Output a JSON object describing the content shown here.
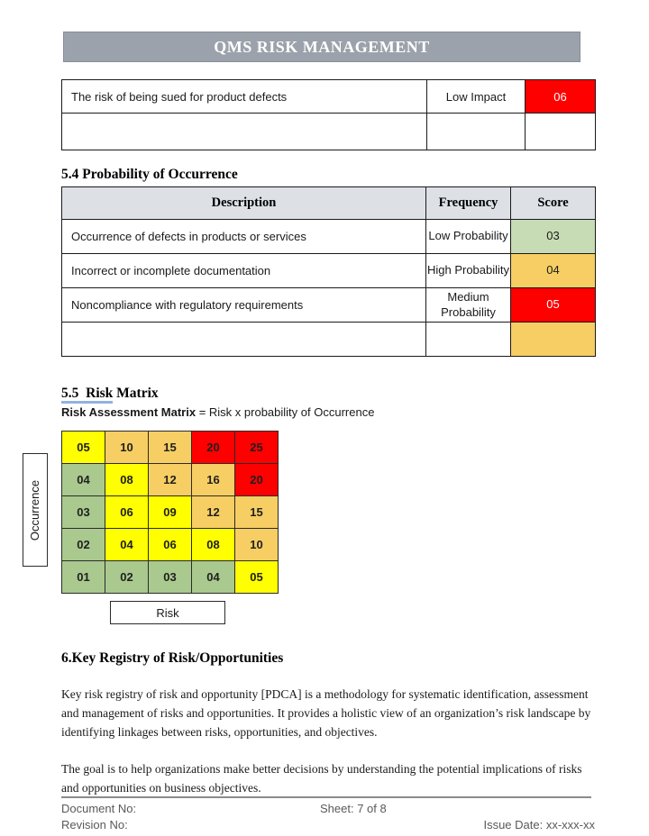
{
  "header": {
    "title": "QMS RISK MANAGEMENT"
  },
  "impact_table": {
    "rows": [
      {
        "description": "The risk of being sued for product defects",
        "level": "Low Impact",
        "score": "06",
        "score_bg": "#FF0000",
        "score_fg": "#FFFFFF"
      },
      {
        "description": "",
        "level": "",
        "score": "",
        "score_bg": "#FFFFFF",
        "score_fg": "#1a1a1a"
      }
    ]
  },
  "probability_section": {
    "heading": "5.4 Probability of Occurrence",
    "table": {
      "headers": [
        "Description",
        "Frequency",
        "Score"
      ],
      "rows": [
        {
          "description": "Occurrence of defects in products or services",
          "frequency": "Low Probability",
          "score": "03",
          "score_bg": "#C7DBB5",
          "score_fg": "#1a1a1a"
        },
        {
          "description": "Incorrect or incomplete documentation",
          "frequency": "High Probability",
          "score": "04",
          "score_bg": "#F7CE63",
          "score_fg": "#1a1a1a"
        },
        {
          "description": "Noncompliance with regulatory requirements",
          "frequency": "Medium Probability",
          "score": "05",
          "score_bg": "#FF0000",
          "score_fg": "#FFFFFF"
        },
        {
          "description": "",
          "frequency": "",
          "score": "",
          "score_bg": "#F7CE63",
          "score_fg": "#1a1a1a"
        }
      ]
    }
  },
  "risk_matrix_section": {
    "heading_underlined": "5.5  Risk",
    "heading_rest": " Matrix",
    "subtitle_bold": "Risk Assessment Matrix",
    "subtitle_rest": " = Risk x probability of Occurrence",
    "y_axis_label": "Occurrence",
    "x_axis_label": "Risk",
    "colors": {
      "green": "#A9C98E",
      "yellow": "#FFFF00",
      "orange": "#F7CE63",
      "red": "#FF0000"
    },
    "cells": [
      [
        {
          "v": "05",
          "c": "yellow"
        },
        {
          "v": "10",
          "c": "orange"
        },
        {
          "v": "15",
          "c": "orange"
        },
        {
          "v": "20",
          "c": "red"
        },
        {
          "v": "25",
          "c": "red"
        }
      ],
      [
        {
          "v": "04",
          "c": "green"
        },
        {
          "v": "08",
          "c": "yellow"
        },
        {
          "v": "12",
          "c": "orange"
        },
        {
          "v": "16",
          "c": "orange"
        },
        {
          "v": "20",
          "c": "red"
        }
      ],
      [
        {
          "v": "03",
          "c": "green"
        },
        {
          "v": "06",
          "c": "yellow"
        },
        {
          "v": "09",
          "c": "yellow"
        },
        {
          "v": "12",
          "c": "orange"
        },
        {
          "v": "15",
          "c": "orange"
        }
      ],
      [
        {
          "v": "02",
          "c": "green"
        },
        {
          "v": "04",
          "c": "yellow"
        },
        {
          "v": "06",
          "c": "yellow"
        },
        {
          "v": "08",
          "c": "yellow"
        },
        {
          "v": "10",
          "c": "orange"
        }
      ],
      [
        {
          "v": "01",
          "c": "green"
        },
        {
          "v": "02",
          "c": "green"
        },
        {
          "v": "03",
          "c": "green"
        },
        {
          "v": "04",
          "c": "green"
        },
        {
          "v": "05",
          "c": "yellow"
        }
      ]
    ]
  },
  "registry_section": {
    "heading": "6.Key Registry of Risk/Opportunities",
    "paragraphs": [
      "Key risk registry of risk and opportunity [PDCA] is a methodology for systematic identification, assessment and management of risks and opportunities. It provides a holistic view of an organization’s risk landscape by identifying linkages between risks, opportunities, and objectives.",
      "The goal is to help organizations make better decisions by understanding the potential implications of risks and opportunities on business objectives."
    ]
  },
  "footer": {
    "document_no": "Document No:",
    "revision_no": "Revision No:",
    "sheet": "Sheet: 7 of 8",
    "issue_date": "Issue Date: xx-xxx-xx"
  }
}
